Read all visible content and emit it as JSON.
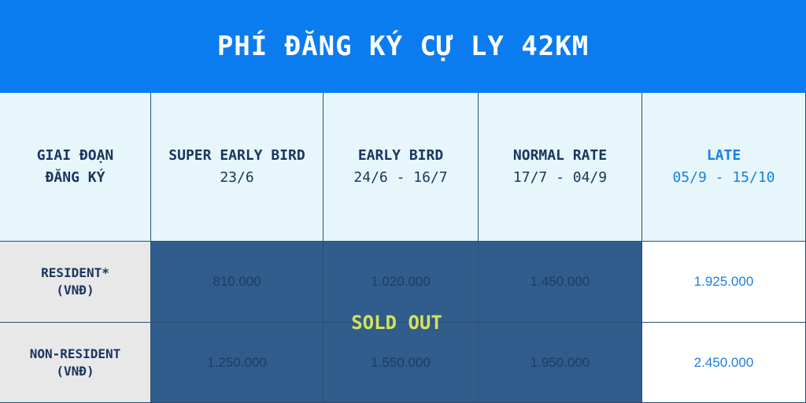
{
  "header": {
    "title": "PHÍ ĐĂNG KÝ CỰ LY 42KM"
  },
  "table": {
    "corner": [
      "GIAI ĐOẠN",
      "ĐĂNG KÝ"
    ],
    "columns": [
      {
        "name": "SUPER EARLY BIRD",
        "dates": "23/6"
      },
      {
        "name": "EARLY BIRD",
        "dates": "24/6 - 16/7"
      },
      {
        "name": "NORMAL RATE",
        "dates": "17/7 - 04/9"
      },
      {
        "name": "LATE",
        "dates": "05/9 - 15/10"
      }
    ],
    "rows": [
      {
        "label": [
          "RESIDENT*",
          "(VNĐ)"
        ],
        "prices": [
          "810.000",
          "1.020.000",
          "1.450.000",
          "1.925.000"
        ]
      },
      {
        "label": [
          "NON-RESIDENT",
          "(VNĐ)"
        ],
        "prices": [
          "1.250.000",
          "1.550.000",
          "1.950.000",
          "2.450.000"
        ]
      }
    ],
    "overlay": "SOLD OUT"
  }
}
